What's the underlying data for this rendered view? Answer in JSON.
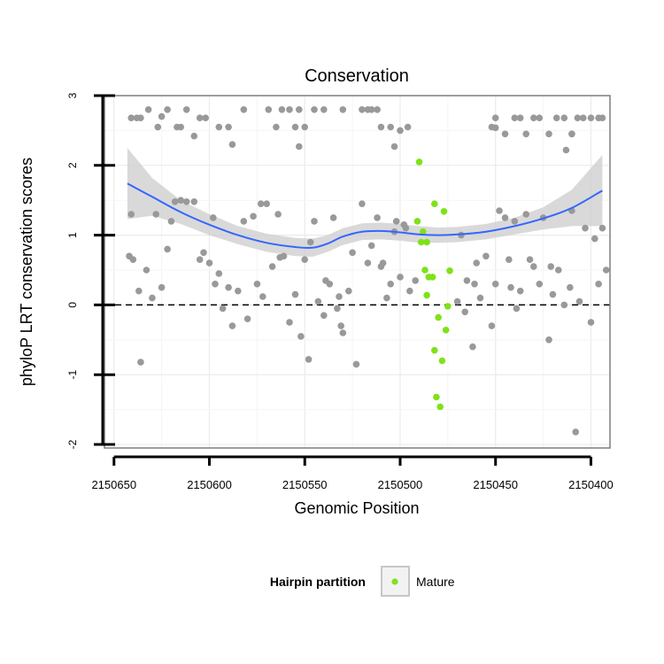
{
  "chart_data": {
    "type": "scatter",
    "title": "Conservation",
    "xlabel": "Genomic Position",
    "ylabel": "phyloP LRT conservation scores",
    "x_reversed": true,
    "xlim": [
      2150400,
      2150650
    ],
    "ylim": [
      -2,
      3
    ],
    "x_ticks": [
      2150650,
      2150600,
      2150550,
      2150500,
      2150450,
      2150400
    ],
    "x_tick_labels": [
      "2150650",
      "2150600",
      "2150550",
      "2150500",
      "2150450",
      "2150400"
    ],
    "y_ticks": [
      -2,
      -1,
      0,
      1,
      2,
      3
    ],
    "y_tick_labels": [
      "-2",
      "-1",
      "0",
      "1",
      "2",
      "3"
    ],
    "reference_line": {
      "y": 0,
      "style": "dashed"
    },
    "grid": true,
    "legend": {
      "title": "Hairpin partition",
      "placement": "bottom",
      "entries": [
        {
          "label": "Mature",
          "color": "#7fe219"
        }
      ]
    },
    "colors": {
      "other": "#999999",
      "mature": "#7fe219",
      "smooth": "#3366ff",
      "band": "#cccccc"
    },
    "smooth_curve": [
      [
        2150643,
        1.74
      ],
      [
        2150630,
        1.55
      ],
      [
        2150615,
        1.33
      ],
      [
        2150600,
        1.15
      ],
      [
        2150585,
        1.0
      ],
      [
        2150570,
        0.89
      ],
      [
        2150555,
        0.83
      ],
      [
        2150546,
        0.82
      ],
      [
        2150538,
        0.88
      ],
      [
        2150530,
        0.98
      ],
      [
        2150520,
        1.05
      ],
      [
        2150510,
        1.06
      ],
      [
        2150500,
        1.04
      ],
      [
        2150490,
        1.01
      ],
      [
        2150480,
        1.0
      ],
      [
        2150470,
        1.01
      ],
      [
        2150455,
        1.05
      ],
      [
        2150440,
        1.13
      ],
      [
        2150425,
        1.24
      ],
      [
        2150410,
        1.39
      ],
      [
        2150394,
        1.64
      ]
    ],
    "smooth_band_upper": [
      [
        2150643,
        2.25
      ],
      [
        2150630,
        1.82
      ],
      [
        2150615,
        1.5
      ],
      [
        2150600,
        1.3
      ],
      [
        2150585,
        1.13
      ],
      [
        2150570,
        1.02
      ],
      [
        2150555,
        0.96
      ],
      [
        2150546,
        0.95
      ],
      [
        2150538,
        1.0
      ],
      [
        2150530,
        1.1
      ],
      [
        2150520,
        1.17
      ],
      [
        2150510,
        1.18
      ],
      [
        2150500,
        1.16
      ],
      [
        2150490,
        1.13
      ],
      [
        2150480,
        1.11
      ],
      [
        2150470,
        1.12
      ],
      [
        2150455,
        1.16
      ],
      [
        2150440,
        1.25
      ],
      [
        2150425,
        1.4
      ],
      [
        2150410,
        1.65
      ],
      [
        2150394,
        2.15
      ]
    ],
    "smooth_band_lower": [
      [
        2150643,
        1.23
      ],
      [
        2150630,
        1.28
      ],
      [
        2150615,
        1.16
      ],
      [
        2150600,
        1.0
      ],
      [
        2150585,
        0.87
      ],
      [
        2150570,
        0.76
      ],
      [
        2150555,
        0.7
      ],
      [
        2150546,
        0.69
      ],
      [
        2150538,
        0.76
      ],
      [
        2150530,
        0.86
      ],
      [
        2150520,
        0.93
      ],
      [
        2150510,
        0.94
      ],
      [
        2150500,
        0.92
      ],
      [
        2150490,
        0.89
      ],
      [
        2150480,
        0.89
      ],
      [
        2150470,
        0.9
      ],
      [
        2150455,
        0.94
      ],
      [
        2150440,
        1.01
      ],
      [
        2150425,
        1.08
      ],
      [
        2150410,
        1.13
      ],
      [
        2150394,
        1.13
      ]
    ],
    "series": [
      {
        "name": "Mature",
        "color": "#7fe219",
        "points": [
          [
            2150490,
            2.05
          ],
          [
            2150491,
            1.2
          ],
          [
            2150488,
            1.05
          ],
          [
            2150489,
            0.9
          ],
          [
            2150486,
            0.9
          ],
          [
            2150482,
            1.45
          ],
          [
            2150477,
            1.34
          ],
          [
            2150487,
            0.5
          ],
          [
            2150485,
            0.4
          ],
          [
            2150483,
            0.4
          ],
          [
            2150486,
            0.14
          ],
          [
            2150474,
            0.49
          ],
          [
            2150475,
            -0.02
          ],
          [
            2150480,
            -0.18
          ],
          [
            2150476,
            -0.36
          ],
          [
            2150482,
            -0.65
          ],
          [
            2150478,
            -0.8
          ],
          [
            2150481,
            -1.32
          ],
          [
            2150479,
            -1.46
          ]
        ]
      },
      {
        "name": "",
        "color": "#999999",
        "points": [
          [
            2150641,
            2.68
          ],
          [
            2150638,
            2.68
          ],
          [
            2150636,
            2.68
          ],
          [
            2150632,
            2.8
          ],
          [
            2150627,
            2.55
          ],
          [
            2150625,
            2.7
          ],
          [
            2150622,
            2.8
          ],
          [
            2150617,
            2.55
          ],
          [
            2150615,
            2.55
          ],
          [
            2150612,
            2.8
          ],
          [
            2150608,
            2.42
          ],
          [
            2150605,
            2.68
          ],
          [
            2150602,
            2.68
          ],
          [
            2150595,
            2.55
          ],
          [
            2150590,
            2.55
          ],
          [
            2150588,
            2.3
          ],
          [
            2150582,
            2.8
          ],
          [
            2150569,
            2.8
          ],
          [
            2150565,
            2.55
          ],
          [
            2150562,
            2.8
          ],
          [
            2150558,
            2.8
          ],
          [
            2150555,
            2.55
          ],
          [
            2150553,
            2.8
          ],
          [
            2150550,
            2.55
          ],
          [
            2150545,
            2.8
          ],
          [
            2150540,
            2.8
          ],
          [
            2150530,
            2.8
          ],
          [
            2150520,
            2.8
          ],
          [
            2150517,
            2.8
          ],
          [
            2150515,
            2.8
          ],
          [
            2150512,
            2.8
          ],
          [
            2150510,
            2.55
          ],
          [
            2150505,
            2.55
          ],
          [
            2150500,
            2.5
          ],
          [
            2150496,
            2.55
          ],
          [
            2150503,
            2.27
          ],
          [
            2150452,
            2.55
          ],
          [
            2150450,
            2.68
          ],
          [
            2150445,
            2.45
          ],
          [
            2150440,
            2.68
          ],
          [
            2150437,
            2.68
          ],
          [
            2150434,
            2.45
          ],
          [
            2150430,
            2.68
          ],
          [
            2150427,
            2.68
          ],
          [
            2150422,
            2.45
          ],
          [
            2150418,
            2.68
          ],
          [
            2150414,
            2.68
          ],
          [
            2150410,
            2.45
          ],
          [
            2150407,
            2.68
          ],
          [
            2150404,
            2.68
          ],
          [
            2150400,
            2.68
          ],
          [
            2150396,
            2.68
          ],
          [
            2150394,
            2.68
          ],
          [
            2150413,
            2.22
          ],
          [
            2150410,
            2.45
          ],
          [
            2150553,
            2.27
          ],
          [
            2150450,
            2.54
          ],
          [
            2150642,
            0.7
          ],
          [
            2150640,
            0.65
          ],
          [
            2150637,
            0.2
          ],
          [
            2150633,
            0.5
          ],
          [
            2150630,
            0.1
          ],
          [
            2150625,
            0.25
          ],
          [
            2150622,
            0.8
          ],
          [
            2150620,
            1.2
          ],
          [
            2150615,
            1.5
          ],
          [
            2150612,
            1.48
          ],
          [
            2150608,
            1.48
          ],
          [
            2150605,
            0.65
          ],
          [
            2150600,
            0.6
          ],
          [
            2150597,
            0.3
          ],
          [
            2150595,
            0.45
          ],
          [
            2150593,
            -0.05
          ],
          [
            2150590,
            0.25
          ],
          [
            2150588,
            -0.3
          ],
          [
            2150585,
            0.2
          ],
          [
            2150582,
            1.2
          ],
          [
            2150580,
            -0.2
          ],
          [
            2150577,
            1.27
          ],
          [
            2150575,
            0.3
          ],
          [
            2150572,
            0.12
          ],
          [
            2150570,
            1.45
          ],
          [
            2150567,
            0.55
          ],
          [
            2150564,
            1.3
          ],
          [
            2150561,
            0.7
          ],
          [
            2150558,
            -0.25
          ],
          [
            2150555,
            0.15
          ],
          [
            2150552,
            -0.45
          ],
          [
            2150550,
            0.65
          ],
          [
            2150548,
            -0.78
          ],
          [
            2150545,
            1.2
          ],
          [
            2150543,
            0.05
          ],
          [
            2150540,
            -0.15
          ],
          [
            2150537,
            0.3
          ],
          [
            2150535,
            1.25
          ],
          [
            2150532,
            0.12
          ],
          [
            2150530,
            -0.4
          ],
          [
            2150527,
            0.2
          ],
          [
            2150525,
            0.75
          ],
          [
            2150523,
            -0.85
          ],
          [
            2150520,
            1.45
          ],
          [
            2150517,
            0.6
          ],
          [
            2150515,
            0.85
          ],
          [
            2150512,
            1.25
          ],
          [
            2150510,
            0.55
          ],
          [
            2150507,
            0.1
          ],
          [
            2150505,
            0.3
          ],
          [
            2150502,
            1.2
          ],
          [
            2150500,
            0.4
          ],
          [
            2150497,
            1.1
          ],
          [
            2150495,
            0.2
          ],
          [
            2150492,
            0.35
          ],
          [
            2150470,
            0.05
          ],
          [
            2150468,
            1.0
          ],
          [
            2150465,
            0.35
          ],
          [
            2150462,
            -0.6
          ],
          [
            2150460,
            0.6
          ],
          [
            2150458,
            0.1
          ],
          [
            2150455,
            0.7
          ],
          [
            2150452,
            -0.3
          ],
          [
            2150450,
            0.3
          ],
          [
            2150448,
            1.35
          ],
          [
            2150445,
            1.25
          ],
          [
            2150442,
            0.25
          ],
          [
            2150440,
            1.2
          ],
          [
            2150437,
            0.2
          ],
          [
            2150434,
            1.3
          ],
          [
            2150432,
            0.65
          ],
          [
            2150430,
            0.55
          ],
          [
            2150427,
            0.3
          ],
          [
            2150425,
            1.25
          ],
          [
            2150422,
            -0.5
          ],
          [
            2150420,
            0.15
          ],
          [
            2150417,
            0.5
          ],
          [
            2150414,
            0.0
          ],
          [
            2150410,
            1.35
          ],
          [
            2150408,
            -1.82
          ],
          [
            2150406,
            0.05
          ],
          [
            2150403,
            1.1
          ],
          [
            2150400,
            -0.25
          ],
          [
            2150398,
            0.95
          ],
          [
            2150396,
            0.3
          ],
          [
            2150394,
            1.1
          ],
          [
            2150392,
            0.5
          ],
          [
            2150641,
            1.3
          ],
          [
            2150636,
            -0.82
          ],
          [
            2150628,
            1.3
          ],
          [
            2150618,
            1.48
          ],
          [
            2150603,
            0.75
          ],
          [
            2150598,
            1.25
          ],
          [
            2150573,
            1.45
          ],
          [
            2150563,
            0.68
          ],
          [
            2150547,
            0.9
          ],
          [
            2150539,
            0.35
          ],
          [
            2150533,
            -0.05
          ],
          [
            2150531,
            -0.3
          ],
          [
            2150509,
            0.6
          ],
          [
            2150503,
            1.05
          ],
          [
            2150498,
            1.15
          ],
          [
            2150466,
            -0.1
          ],
          [
            2150461,
            0.3
          ],
          [
            2150443,
            0.65
          ],
          [
            2150439,
            -0.05
          ],
          [
            2150421,
            0.55
          ],
          [
            2150411,
            0.25
          ]
        ]
      }
    ]
  }
}
